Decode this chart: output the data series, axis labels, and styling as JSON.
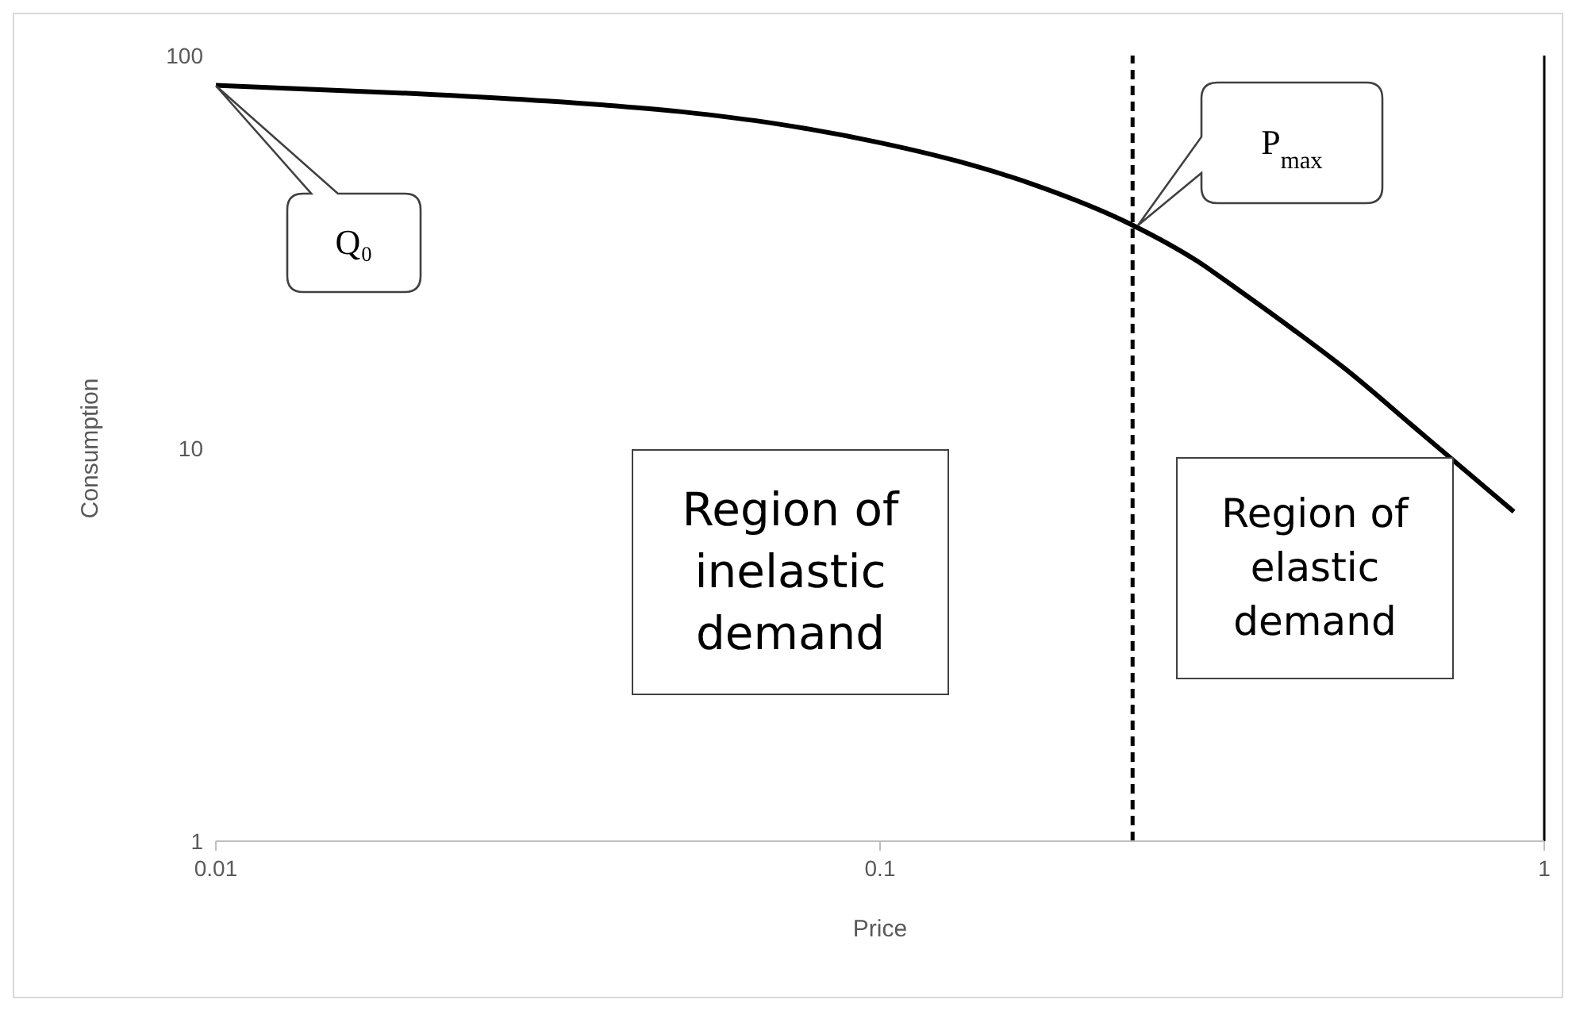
{
  "chart_data": {
    "type": "line",
    "xlabel": "Price",
    "ylabel": "Consumption",
    "log": "xy",
    "grid": false,
    "legend": false,
    "marker": "none",
    "line_style": "solid",
    "x": [
      0.01,
      0.02,
      0.03,
      0.05,
      0.07,
      0.1,
      0.13,
      0.17,
      0.24,
      0.3,
      0.35,
      0.42,
      0.5,
      0.65,
      0.9
    ],
    "series": [
      {
        "color": "#000000",
        "values": [
          84,
          80,
          77,
          72,
          67,
          60,
          54,
          47,
          37,
          30,
          25,
          20,
          16,
          11,
          6.9
        ]
      }
    ],
    "xlim": [
      0.01,
      1
    ],
    "xticks": [
      0.01,
      0.1,
      1
    ],
    "ylim": [
      1,
      100
    ],
    "yticks": [
      1,
      10,
      100
    ],
    "ref_lines": [
      {
        "axis": "x",
        "value": 0.24,
        "color": "#000000",
        "line_style": "dashed"
      },
      {
        "axis": "x",
        "value": 1,
        "color": "#000000",
        "line_style": "solid"
      }
    ],
    "annotations": [
      "Q₀",
      "P$_{max}$",
      "Region of inelastic demand",
      "Region of elastic demand"
    ]
  }
}
